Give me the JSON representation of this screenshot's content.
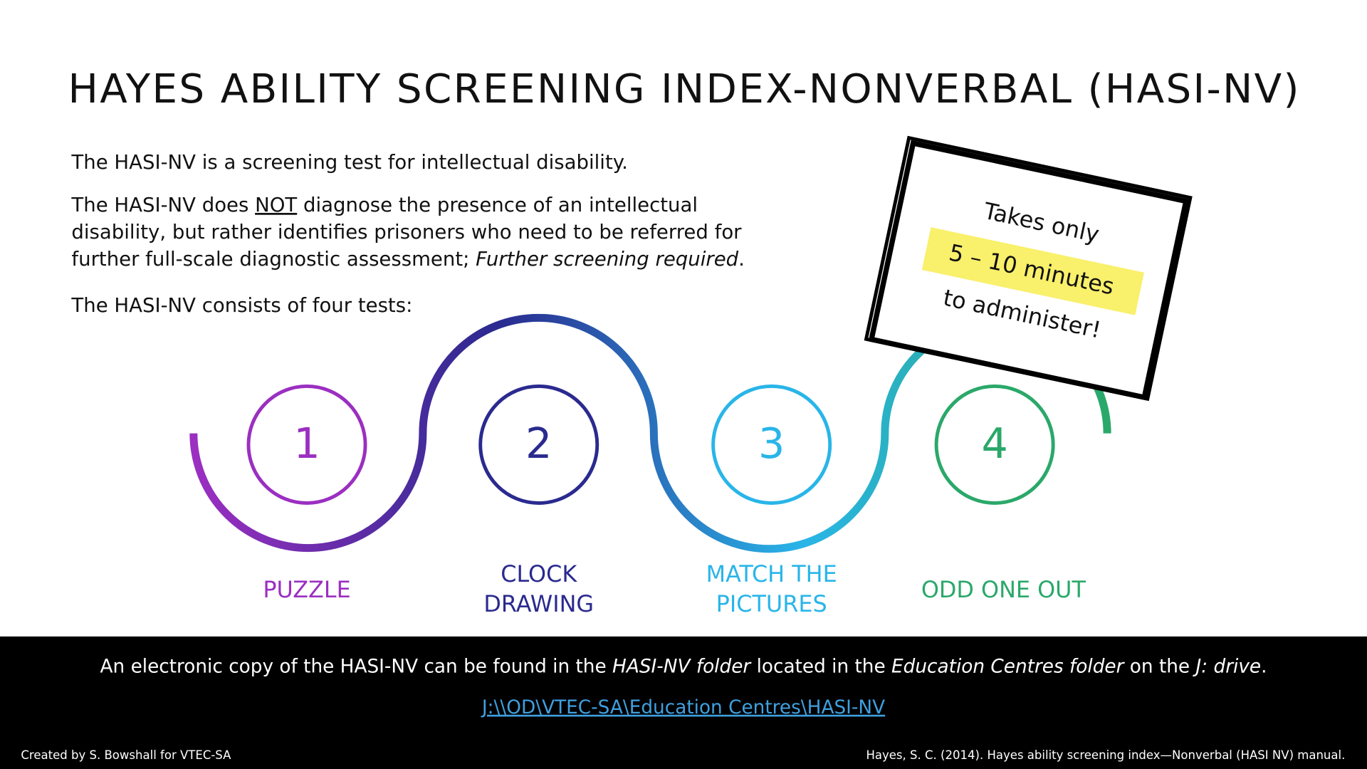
{
  "title": "HAYES ABILITY SCREENING INDEX-NONVERBAL (HASI-NV)",
  "intro": [
    [
      [
        {
          "text": "The HASI-NV is a screening test for intellectual disability."
        }
      ]
    ],
    [
      [
        {
          "text": "The HASI-NV does "
        },
        {
          "text": "NOT",
          "style": "underline"
        },
        {
          "text": " diagnose the presence of an intellectual"
        }
      ],
      [
        {
          "text": "disability, but rather identifies prisoners who need to be referred for"
        }
      ],
      [
        {
          "text": "further full-scale diagnostic assessment; "
        },
        {
          "text": "Further screening required",
          "style": "italic"
        },
        {
          "text": "."
        }
      ]
    ],
    [
      [
        {
          "text": "The HASI-NV consists of four tests:"
        }
      ]
    ]
  ],
  "callout": {
    "lines": [
      "Takes only",
      "5 – 10 minutes",
      "to administer!"
    ],
    "highlight_color": "#f9f06b"
  },
  "steps": [
    {
      "number": "1",
      "label": [
        "PUZZLE"
      ],
      "color": "#9b2fc1"
    },
    {
      "number": "2",
      "label": [
        "CLOCK",
        "DRAWING"
      ],
      "color": "#2a2a8f"
    },
    {
      "number": "3",
      "label": [
        "MATCH THE",
        "PICTURES"
      ],
      "color": "#29b5e8"
    },
    {
      "number": "4",
      "label": [
        "ODD ONE OUT"
      ],
      "color": "#2aa86a"
    }
  ],
  "footer": {
    "note": [
      {
        "text": "An electronic copy of the HASI-NV can be found in the "
      },
      {
        "text": "HASI-NV folder",
        "style": "italic"
      },
      {
        "text": " located in the "
      },
      {
        "text": "Education Centres folder",
        "style": "italic"
      },
      {
        "text": " on the "
      },
      {
        "text": "J: drive",
        "style": "italic"
      },
      {
        "text": "."
      }
    ],
    "link": "J:\\\\OD\\VTEC-SA\\Education Centres\\HASI-NV",
    "credit": "Created by S. Bowshall for VTEC-SA",
    "citation": "Hayes, S. C. (2014). Hayes ability screening index—Nonverbal (HASI NV) manual."
  }
}
